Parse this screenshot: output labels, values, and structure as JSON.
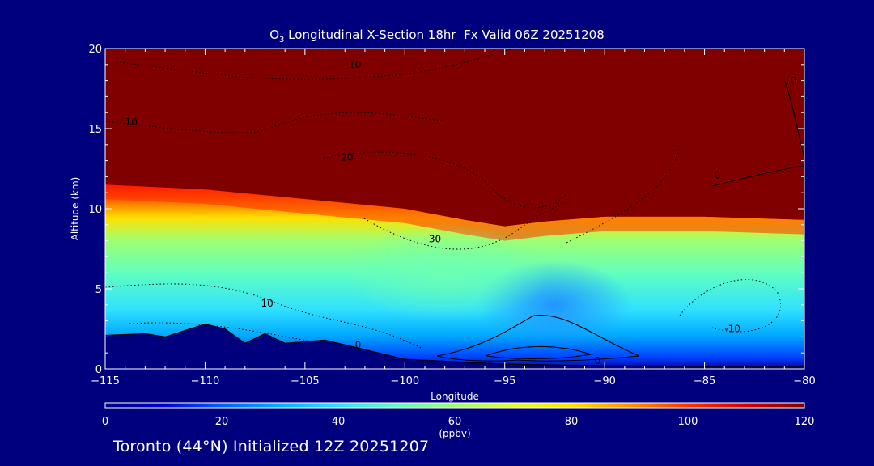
{
  "chart_data": {
    "type": "heatmap",
    "title_parts": [
      "O",
      "3",
      " Longitudinal X-Section 18hr  Fx Valid 06Z 20251208"
    ],
    "xlabel": "Longitude",
    "ylabel": "Altitude (km)",
    "xlim": [
      -115,
      -80
    ],
    "ylim": [
      0,
      20
    ],
    "x_ticks": [
      -115,
      -110,
      -105,
      -100,
      -95,
      -90,
      -85,
      -80
    ],
    "x_tick_labels": [
      "−115",
      "−110",
      "−105",
      "−100",
      "−95",
      "−90",
      "−85",
      "−80"
    ],
    "y_ticks": [
      0,
      5,
      10,
      15,
      20
    ],
    "y_tick_labels": [
      "0",
      "5",
      "10",
      "15",
      "20"
    ],
    "colorbar": {
      "label": "(ppbv)",
      "range": [
        0,
        120
      ],
      "ticks": [
        0,
        20,
        40,
        60,
        80,
        100,
        120
      ],
      "tick_labels": [
        "0",
        "20",
        "40",
        "60",
        "80",
        "100",
        "120"
      ],
      "colors": [
        "#000080",
        "#0000d0",
        "#0060ff",
        "#00b0ff",
        "#30e0ff",
        "#60ffc0",
        "#a0ff70",
        "#e0ff30",
        "#ffe000",
        "#ff9000",
        "#ff3000",
        "#d00000",
        "#800000"
      ]
    },
    "tropopause_km": [
      [
        -115,
        11.5
      ],
      [
        -110,
        11.2
      ],
      [
        -105,
        10.6
      ],
      [
        -100,
        10.0
      ],
      [
        -97,
        9.3
      ],
      [
        -95,
        8.9
      ],
      [
        -93,
        9.2
      ],
      [
        -90,
        9.5
      ],
      [
        -85,
        9.5
      ],
      [
        -80,
        9.3
      ]
    ],
    "terrain_km": [
      [
        -115,
        2.1
      ],
      [
        -113,
        2.2
      ],
      [
        -112,
        2.0
      ],
      [
        -110,
        2.8
      ],
      [
        -109,
        2.5
      ],
      [
        -108,
        1.6
      ],
      [
        -107,
        2.2
      ],
      [
        -106,
        1.6
      ],
      [
        -104,
        1.8
      ],
      [
        -102,
        1.2
      ],
      [
        -100,
        0.6
      ],
      [
        -95,
        0.3
      ],
      [
        -90,
        0.2
      ],
      [
        -85,
        0.15
      ],
      [
        -80,
        0.15
      ]
    ],
    "contour_labels": [
      {
        "text": "10",
        "lon": -114,
        "alt": 15.2
      },
      {
        "text": "10",
        "lon": -102.8,
        "alt": 18.8
      },
      {
        "text": "20",
        "lon": -103.2,
        "alt": 13.0
      },
      {
        "text": "30",
        "lon": -98.8,
        "alt": 7.9
      },
      {
        "text": "10",
        "lon": -107.2,
        "alt": 3.9
      },
      {
        "text": "-10",
        "lon": -84.0,
        "alt": 2.3
      },
      {
        "text": "0",
        "lon": -102.5,
        "alt": 1.3
      },
      {
        "text": "0",
        "lon": -84.5,
        "alt": 11.9
      },
      {
        "text": "0",
        "lon": -80.7,
        "alt": 17.8
      },
      {
        "text": "0",
        "lon": -90.5,
        "alt": 0.3
      }
    ]
  },
  "footer_text": "Toronto (44°N) Initialized 12Z 20251207"
}
